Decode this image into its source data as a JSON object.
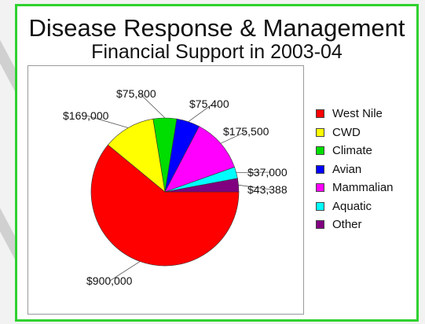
{
  "chart_data": {
    "type": "pie",
    "title": "Disease Response & Management",
    "subtitle": "Financial Support in 2003-04",
    "slices": [
      {
        "name": "West Nile",
        "value": 900000,
        "label": "$900,000",
        "color": "#ff0000"
      },
      {
        "name": "CWD",
        "value": 169000,
        "label": "$169,000",
        "color": "#ffff00"
      },
      {
        "name": "Climate",
        "value": 75800,
        "label": "$75,800",
        "color": "#00dd00"
      },
      {
        "name": "Avian",
        "value": 75400,
        "label": "$75,400",
        "color": "#0000ff"
      },
      {
        "name": "Mammalian",
        "value": 175500,
        "label": "$175,500",
        "color": "#ff00ff"
      },
      {
        "name": "Aquatic",
        "value": 37000,
        "label": "$37,000",
        "color": "#00ffff"
      },
      {
        "name": "Other",
        "value": 43388,
        "label": "$43,388",
        "color": "#800080"
      }
    ],
    "legend_position": "right"
  }
}
